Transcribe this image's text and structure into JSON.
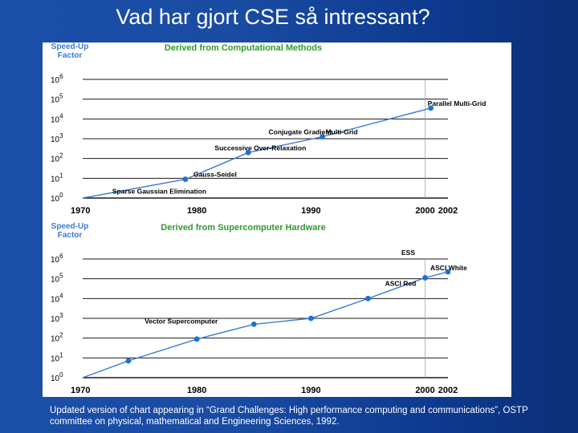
{
  "slide": {
    "title": "Vad har gjort CSE så intressant?",
    "caption": "Updated version of chart appearing in “Grand Challenges: High performance computing and communications”, OSTP committee on physical, mathematical and Engineering Sciences, 1992."
  },
  "colors": {
    "line": "#3a7ad8",
    "point": "#1f6fd6",
    "title": "#2e9a2e",
    "ylabel": "#3a7ad8",
    "grid": "#1a1a1a"
  },
  "chart_data": [
    {
      "type": "line",
      "title": "Derived from Computational Methods",
      "ylabel": "Speed-Up Factor",
      "xlabel": "",
      "yscale": "log",
      "xlim": [
        1970,
        2002
      ],
      "ylim_exponent": [
        0,
        6
      ],
      "x_ticks": [
        "1970",
        "1980",
        "1990",
        "2000",
        "2002"
      ],
      "y_ticks": [
        "10^0",
        "10^1",
        "10^2",
        "10^3",
        "10^4",
        "10^5",
        "10^6"
      ],
      "grid": "horizontal",
      "series": [
        {
          "x": [
            1970,
            1979,
            1984.5,
            1991,
            2000.5
          ],
          "log10_y": [
            0.0,
            0.95,
            2.3,
            3.1,
            4.55
          ]
        }
      ],
      "annotations": [
        {
          "label": "Sparse Gaussian Elimination",
          "x": 1974,
          "log10_y": 0.1
        },
        {
          "label": "Gauss-Seidel",
          "x": 1979,
          "log10_y": 0.95
        },
        {
          "label": "Successive Over-Relaxation",
          "x": 1981,
          "log10_y": 2.3
        },
        {
          "label": "Conjugate Gradient",
          "x": 1986,
          "log10_y": 3.1
        },
        {
          "label": "Multi-Grid",
          "x": 1991,
          "log10_y": 3.1
        },
        {
          "label": "Parallel Multi-Grid",
          "x": 2000.5,
          "log10_y": 4.55
        }
      ]
    },
    {
      "type": "line",
      "title": "Derived from Supercomputer Hardware",
      "ylabel": "Speed-Up Factor",
      "xlabel": "",
      "yscale": "log",
      "xlim": [
        1970,
        2002
      ],
      "ylim_exponent": [
        0,
        6
      ],
      "x_ticks": [
        "1970",
        "1980",
        "1990",
        "2000",
        "2002"
      ],
      "y_ticks": [
        "10^0",
        "10^1",
        "10^2",
        "10^3",
        "10^4",
        "10^5",
        "10^6"
      ],
      "grid": "horizontal",
      "series": [
        {
          "x": [
            1970,
            1974,
            1980,
            1985,
            1990,
            1995,
            2000,
            2002
          ],
          "log10_y": [
            0.0,
            0.85,
            1.95,
            2.7,
            3.0,
            4.0,
            5.05,
            5.35
          ]
        }
      ],
      "annotations": [
        {
          "label": "Vector Supercomputer",
          "x": 1980,
          "log10_y": 2.7
        },
        {
          "label": "ASCI Red",
          "x": 2000,
          "log10_y": 5.05
        },
        {
          "label": "ASCI White",
          "x": 2002,
          "log10_y": 5.35
        },
        {
          "label": "ESS",
          "x": 2002,
          "log10_y": 6.0
        }
      ]
    }
  ]
}
